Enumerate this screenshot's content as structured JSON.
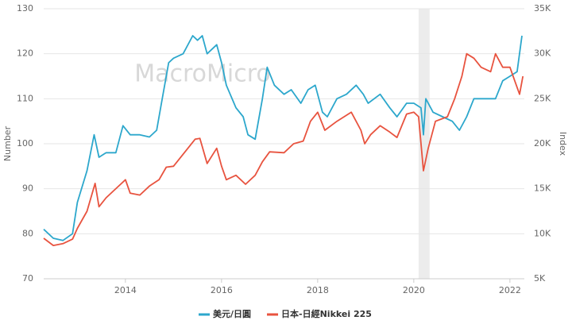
{
  "chart_data": {
    "type": "line",
    "watermark": "MacroMicro",
    "ylabel": "Number",
    "y2label": "Index",
    "xlim": [
      2012.3,
      2022.3
    ],
    "xticks": [
      2014,
      2016,
      2018,
      2020,
      2022
    ],
    "ylim": [
      70,
      130
    ],
    "yticks": [
      70,
      80,
      90,
      100,
      110,
      120,
      130
    ],
    "y2lim": [
      5000,
      35000
    ],
    "y2ticks": [
      {
        "value": 5000,
        "label": "5K"
      },
      {
        "value": 10000,
        "label": "10K"
      },
      {
        "value": 15000,
        "label": "15K"
      },
      {
        "value": 20000,
        "label": "20K"
      },
      {
        "value": 25000,
        "label": "25K"
      },
      {
        "value": 30000,
        "label": "30K"
      },
      {
        "value": 35000,
        "label": "35K"
      }
    ],
    "grid": true,
    "highlight_x": [
      2020.1,
      2020.33
    ],
    "legend": "bottom",
    "series": [
      {
        "name": "美元/日圓",
        "color": "#2ca7cc",
        "x": [
          2012.3,
          2012.5,
          2012.7,
          2012.9,
          2013.0,
          2013.2,
          2013.35,
          2013.45,
          2013.6,
          2013.8,
          2013.95,
          2014.1,
          2014.3,
          2014.5,
          2014.65,
          2014.75,
          2014.9,
          2015.0,
          2015.2,
          2015.4,
          2015.5,
          2015.6,
          2015.7,
          2015.9,
          2016.0,
          2016.1,
          2016.3,
          2016.45,
          2016.55,
          2016.7,
          2016.85,
          2016.95,
          2017.1,
          2017.3,
          2017.45,
          2017.65,
          2017.8,
          2017.95,
          2018.1,
          2018.2,
          2018.4,
          2018.6,
          2018.8,
          2018.95,
          2019.05,
          2019.3,
          2019.5,
          2019.65,
          2019.85,
          2020.0,
          2020.15,
          2020.2,
          2020.25,
          2020.4,
          2020.6,
          2020.8,
          2020.95,
          2021.1,
          2021.25,
          2021.5,
          2021.7,
          2021.85,
          2022.0,
          2022.15,
          2022.25
        ],
        "values": [
          81,
          79,
          78.5,
          80,
          87,
          94,
          102,
          97,
          98,
          98,
          104,
          102,
          102,
          101.5,
          103,
          109,
          118,
          119,
          120,
          124,
          123,
          124,
          120,
          122,
          118,
          113,
          108,
          106,
          102,
          101,
          110,
          117,
          113,
          111,
          112,
          109,
          112,
          113,
          107,
          106,
          110,
          111,
          113,
          111,
          109,
          111,
          108,
          106,
          109,
          109,
          108,
          102,
          110,
          107,
          106,
          105,
          103,
          106,
          110,
          110,
          110,
          114,
          115,
          116,
          124
        ]
      },
      {
        "name": "日本-日經Nikkei 225",
        "color": "#e8533f",
        "axis": "y2",
        "x": [
          2012.3,
          2012.5,
          2012.7,
          2012.9,
          2013.0,
          2013.2,
          2013.37,
          2013.45,
          2013.6,
          2013.9,
          2014.0,
          2014.1,
          2014.3,
          2014.5,
          2014.7,
          2014.85,
          2015.0,
          2015.3,
          2015.45,
          2015.55,
          2015.7,
          2015.9,
          2016.0,
          2016.1,
          2016.3,
          2016.5,
          2016.7,
          2016.85,
          2017.0,
          2017.3,
          2017.5,
          2017.7,
          2017.85,
          2018.0,
          2018.15,
          2018.4,
          2018.7,
          2018.9,
          2018.98,
          2019.1,
          2019.3,
          2019.5,
          2019.65,
          2019.85,
          2020.0,
          2020.1,
          2020.2,
          2020.3,
          2020.45,
          2020.7,
          2020.85,
          2021.0,
          2021.1,
          2021.25,
          2021.4,
          2021.6,
          2021.7,
          2021.85,
          2022.0,
          2022.1,
          2022.2,
          2022.27
        ],
        "values": [
          9500,
          8700,
          8900,
          9400,
          10600,
          12500,
          15600,
          13000,
          14000,
          15500,
          16000,
          14500,
          14300,
          15300,
          16000,
          17400,
          17500,
          19500,
          20500,
          20600,
          17800,
          19500,
          17500,
          16000,
          16500,
          15500,
          16500,
          18000,
          19100,
          19000,
          20000,
          20300,
          22500,
          23500,
          21500,
          22500,
          23500,
          21500,
          20000,
          21000,
          22000,
          21300,
          20700,
          23300,
          23500,
          23000,
          17000,
          19500,
          22500,
          23000,
          25000,
          27500,
          30000,
          29500,
          28500,
          28000,
          30000,
          28500,
          28500,
          27000,
          25500,
          27500
        ]
      }
    ]
  }
}
